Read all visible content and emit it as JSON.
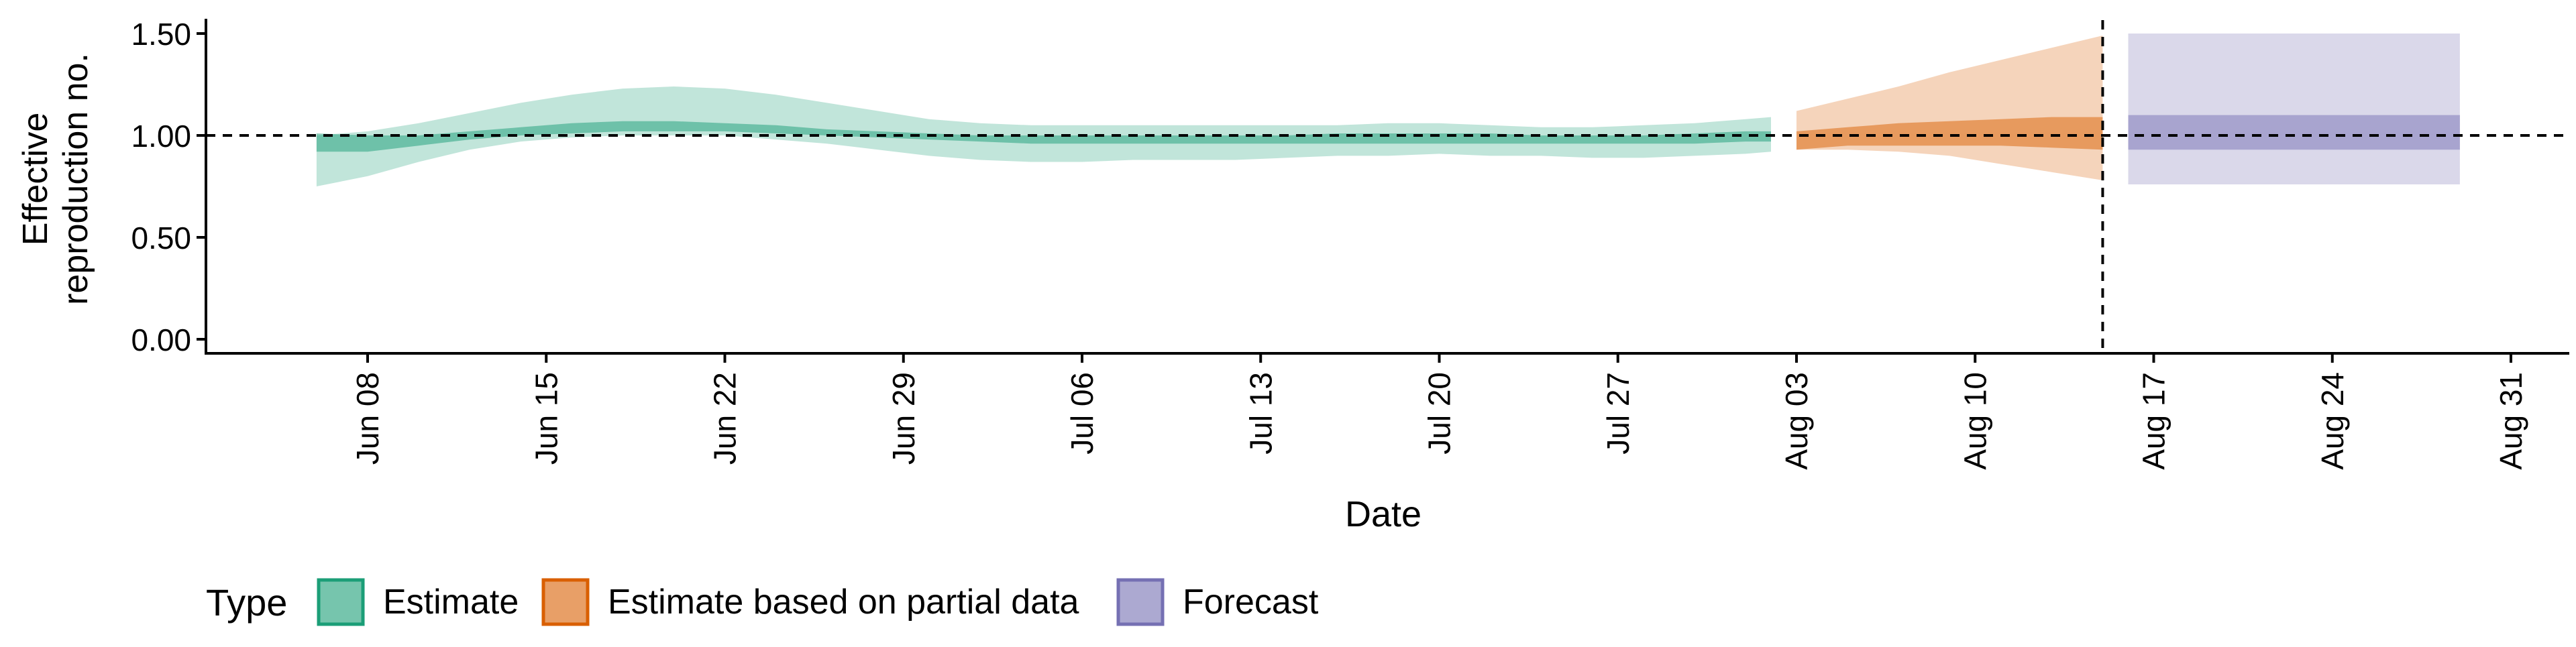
{
  "chart_data": {
    "type": "area",
    "xlabel": "Date",
    "ylabel_lines": [
      "Effective",
      "reproduction no."
    ],
    "ylim": [
      0,
      1.5
    ],
    "y_ticks": [
      0,
      0.5,
      1.0,
      1.5
    ],
    "y_tick_labels": [
      "0.00",
      "0.50",
      "1.00",
      "1.50"
    ],
    "x_range": [
      "2020-06-01",
      "2020-09-03"
    ],
    "x_ticks": [
      "2020-06-08",
      "2020-06-15",
      "2020-06-22",
      "2020-06-29",
      "2020-07-06",
      "2020-07-13",
      "2020-07-20",
      "2020-07-27",
      "2020-08-03",
      "2020-08-10",
      "2020-08-17",
      "2020-08-24",
      "2020-08-31"
    ],
    "x_tick_labels": [
      "Jun 08",
      "Jun 15",
      "Jun 22",
      "Jun 29",
      "Jul 06",
      "Jul 13",
      "Jul 20",
      "Jul 27",
      "Aug 03",
      "Aug 10",
      "Aug 17",
      "Aug 24",
      "Aug 31"
    ],
    "reference_line_y": 1.0,
    "forecast_start_date": "2020-08-15",
    "grid": false,
    "legend": {
      "title": "Type",
      "placement": "bottom",
      "entries": [
        "Estimate",
        "Estimate based on partial data",
        "Forecast"
      ]
    },
    "colors": {
      "estimate": "#1b9e77",
      "partial": "#d95f02",
      "forecast": "#7570b3"
    },
    "series": [
      {
        "name": "Estimate",
        "x": [
          "2020-06-06",
          "2020-06-08",
          "2020-06-10",
          "2020-06-12",
          "2020-06-14",
          "2020-06-16",
          "2020-06-18",
          "2020-06-20",
          "2020-06-22",
          "2020-06-24",
          "2020-06-26",
          "2020-06-28",
          "2020-06-30",
          "2020-07-02",
          "2020-07-04",
          "2020-07-06",
          "2020-07-08",
          "2020-07-10",
          "2020-07-12",
          "2020-07-14",
          "2020-07-16",
          "2020-07-18",
          "2020-07-20",
          "2020-07-22",
          "2020-07-24",
          "2020-07-26",
          "2020-07-28",
          "2020-07-30",
          "2020-08-01",
          "2020-08-02"
        ],
        "lower_90": [
          0.75,
          0.8,
          0.87,
          0.93,
          0.97,
          0.99,
          1.0,
          1.0,
          1.0,
          0.98,
          0.96,
          0.93,
          0.9,
          0.88,
          0.87,
          0.87,
          0.88,
          0.88,
          0.88,
          0.89,
          0.9,
          0.9,
          0.91,
          0.9,
          0.9,
          0.89,
          0.89,
          0.9,
          0.91,
          0.92
        ],
        "upper_90": [
          1.0,
          1.02,
          1.06,
          1.11,
          1.16,
          1.2,
          1.23,
          1.24,
          1.23,
          1.2,
          1.16,
          1.12,
          1.08,
          1.06,
          1.05,
          1.05,
          1.05,
          1.05,
          1.05,
          1.05,
          1.05,
          1.06,
          1.06,
          1.05,
          1.04,
          1.04,
          1.05,
          1.06,
          1.08,
          1.09
        ],
        "lower_50": [
          0.92,
          0.92,
          0.95,
          0.98,
          1.0,
          1.01,
          1.02,
          1.02,
          1.02,
          1.01,
          1.0,
          0.99,
          0.98,
          0.97,
          0.96,
          0.96,
          0.96,
          0.96,
          0.96,
          0.96,
          0.96,
          0.96,
          0.96,
          0.96,
          0.96,
          0.96,
          0.96,
          0.96,
          0.97,
          0.97
        ],
        "upper_50": [
          1.01,
          1.0,
          1.0,
          1.02,
          1.04,
          1.06,
          1.07,
          1.07,
          1.06,
          1.05,
          1.03,
          1.02,
          1.01,
          1.0,
          1.0,
          1.0,
          1.0,
          1.0,
          1.0,
          1.0,
          1.01,
          1.01,
          1.01,
          1.01,
          1.0,
          1.0,
          1.0,
          1.01,
          1.02,
          1.02
        ]
      },
      {
        "name": "Estimate based on partial data",
        "x": [
          "2020-08-03",
          "2020-08-05",
          "2020-08-07",
          "2020-08-09",
          "2020-08-11",
          "2020-08-13",
          "2020-08-15"
        ],
        "lower_90": [
          0.93,
          0.93,
          0.92,
          0.9,
          0.86,
          0.82,
          0.78
        ],
        "upper_90": [
          1.12,
          1.18,
          1.24,
          1.31,
          1.37,
          1.43,
          1.49
        ],
        "lower_50": [
          0.93,
          0.95,
          0.95,
          0.95,
          0.95,
          0.94,
          0.93
        ],
        "upper_50": [
          1.02,
          1.04,
          1.06,
          1.07,
          1.08,
          1.09,
          1.09
        ]
      },
      {
        "name": "Forecast",
        "x": [
          "2020-08-16",
          "2020-08-29"
        ],
        "lower_90": [
          0.76,
          0.76
        ],
        "upper_90": [
          1.5,
          1.5
        ],
        "lower_50": [
          0.93,
          0.93
        ],
        "upper_50": [
          1.1,
          1.1
        ]
      }
    ]
  }
}
